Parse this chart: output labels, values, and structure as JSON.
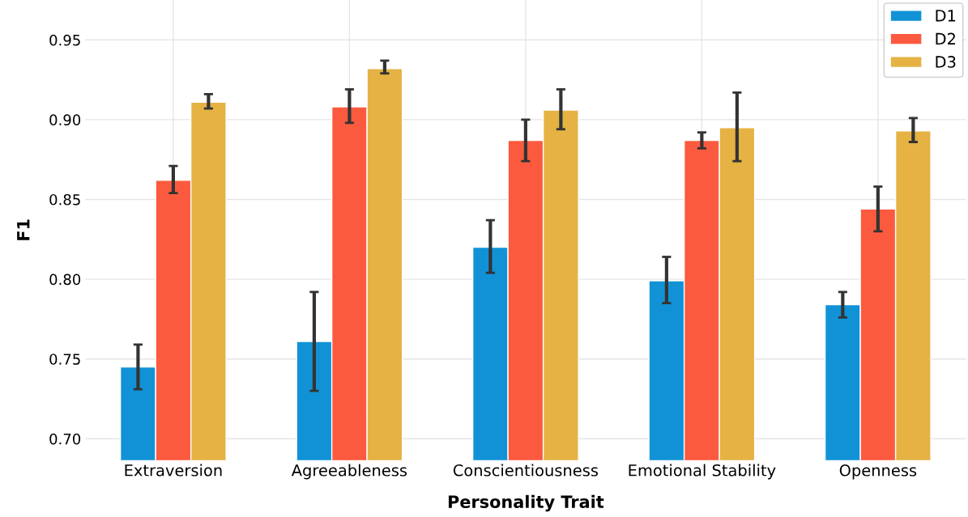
{
  "chart_data": {
    "type": "bar",
    "xlabel": "Personality Trait",
    "ylabel": "F1",
    "categories": [
      "Extraversion",
      "Agreeableness",
      "Conscientiousness",
      "Emotional Stability",
      "Openness"
    ],
    "series": [
      {
        "name": "D1",
        "color": "#1192d6",
        "values": [
          0.745,
          0.761,
          0.82,
          0.799,
          0.784
        ],
        "errors": [
          [
            0.731,
            0.759
          ],
          [
            0.73,
            0.792
          ],
          [
            0.804,
            0.837
          ],
          [
            0.785,
            0.814
          ],
          [
            0.776,
            0.792
          ]
        ]
      },
      {
        "name": "D2",
        "color": "#fc5a3e",
        "values": [
          0.862,
          0.908,
          0.887,
          0.887,
          0.844
        ],
        "errors": [
          [
            0.854,
            0.871
          ],
          [
            0.898,
            0.919
          ],
          [
            0.874,
            0.9
          ],
          [
            0.882,
            0.892
          ],
          [
            0.83,
            0.858
          ]
        ]
      },
      {
        "name": "D3",
        "color": "#e5b243",
        "values": [
          0.911,
          0.932,
          0.906,
          0.895,
          0.893
        ],
        "errors": [
          [
            0.907,
            0.916
          ],
          [
            0.929,
            0.937
          ],
          [
            0.894,
            0.919
          ],
          [
            0.874,
            0.917
          ],
          [
            0.886,
            0.901
          ]
        ]
      }
    ],
    "ylim": [
      0.6866,
      0.975
    ],
    "yticks": [
      {
        "value": 0.7,
        "label": "0.70"
      },
      {
        "value": 0.75,
        "label": "0.75"
      },
      {
        "value": 0.8,
        "label": "0.80"
      },
      {
        "value": 0.85,
        "label": "0.85"
      },
      {
        "value": 0.9,
        "label": "0.90"
      },
      {
        "value": 0.95,
        "label": "0.95"
      }
    ],
    "grid": true,
    "legend": "top right"
  }
}
